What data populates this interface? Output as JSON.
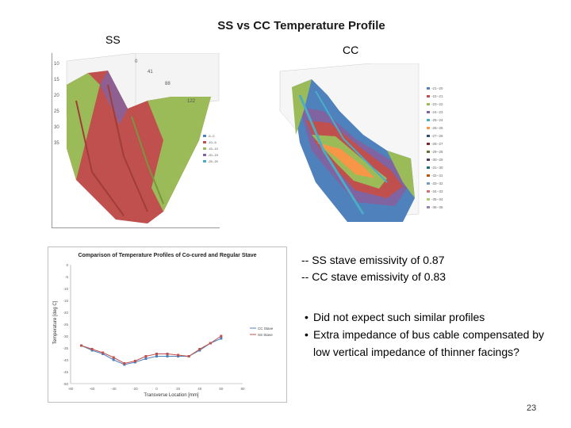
{
  "slide": {
    "title": "SS vs CC Temperature Profile",
    "ss_label": "SS",
    "cc_label": "CC",
    "notes": [
      "-- SS stave emissivity of 0.87",
      "-- CC stave emissivity of 0.83"
    ],
    "bullets": [
      "Did not expect such similar profiles",
      "Extra impedance of bus cable compensated by low vertical impedance of thinner facings?"
    ],
    "page_number": "23"
  },
  "ss_plot": {
    "y_ticks": [
      "10",
      "15",
      "20",
      "25",
      "30",
      "35"
    ],
    "x_ticks": [
      "0",
      "41",
      "88",
      "122"
    ],
    "legend": [
      "-5--0",
      "-10--5",
      "-15--10",
      "-20--15",
      "-25--20"
    ],
    "colors": {
      "red": "#c0504d",
      "green": "#9bbb59",
      "purple": "#8064a2",
      "blue": "#4f81bd"
    }
  },
  "cc_plot": {
    "legend": [
      "-21--20",
      "-22--21",
      "-23--22",
      "-24--23",
      "-25--24",
      "-26--25",
      "-27--26",
      "-28--27",
      "-29--28",
      "-30--29",
      "-31--30",
      "-32--31",
      "-33--32",
      "-34--33",
      "-35--34",
      "-36--35"
    ],
    "colors": {
      "red": "#c0504d",
      "green": "#9bbb59",
      "purple": "#8064a2",
      "blue": "#4f81bd",
      "cyan": "#4bacc6",
      "orange": "#f79646"
    }
  },
  "chart_data": {
    "type": "line",
    "title": "Comparison of Temperature Profiles of Co-cured and Regular Stave",
    "xlabel": "Transverse Location [mm]",
    "ylabel": "Temperature [deg C]",
    "xlim": [
      -80,
      80
    ],
    "ylim": [
      -50,
      0
    ],
    "x_ticks": [
      "-80",
      "-60",
      "-40",
      "-20",
      "0",
      "20",
      "40",
      "60",
      "80"
    ],
    "y_ticks": [
      "0",
      "-5",
      "-10",
      "-15",
      "-20",
      "-25",
      "-30",
      "-35",
      "-40",
      "-45",
      "-50"
    ],
    "x": [
      -70,
      -60,
      -50,
      -40,
      -30,
      -20,
      -10,
      0,
      10,
      20,
      30,
      40,
      50,
      60
    ],
    "series": [
      {
        "name": "CC Stave",
        "color": "#4f81bd",
        "values": [
          -34,
          -36,
          -37.5,
          -40,
          -42,
          -41,
          -39.5,
          -38.5,
          -38.5,
          -38.5,
          -38.5,
          -36,
          -33,
          -31
        ]
      },
      {
        "name": "SS Stave",
        "color": "#c0504d",
        "values": [
          -34,
          -35.5,
          -37,
          -39,
          -41.5,
          -40.5,
          -38.5,
          -37.5,
          -37.5,
          -38,
          -38.5,
          -35.5,
          -33,
          -30
        ]
      }
    ],
    "legend_position": "right"
  }
}
